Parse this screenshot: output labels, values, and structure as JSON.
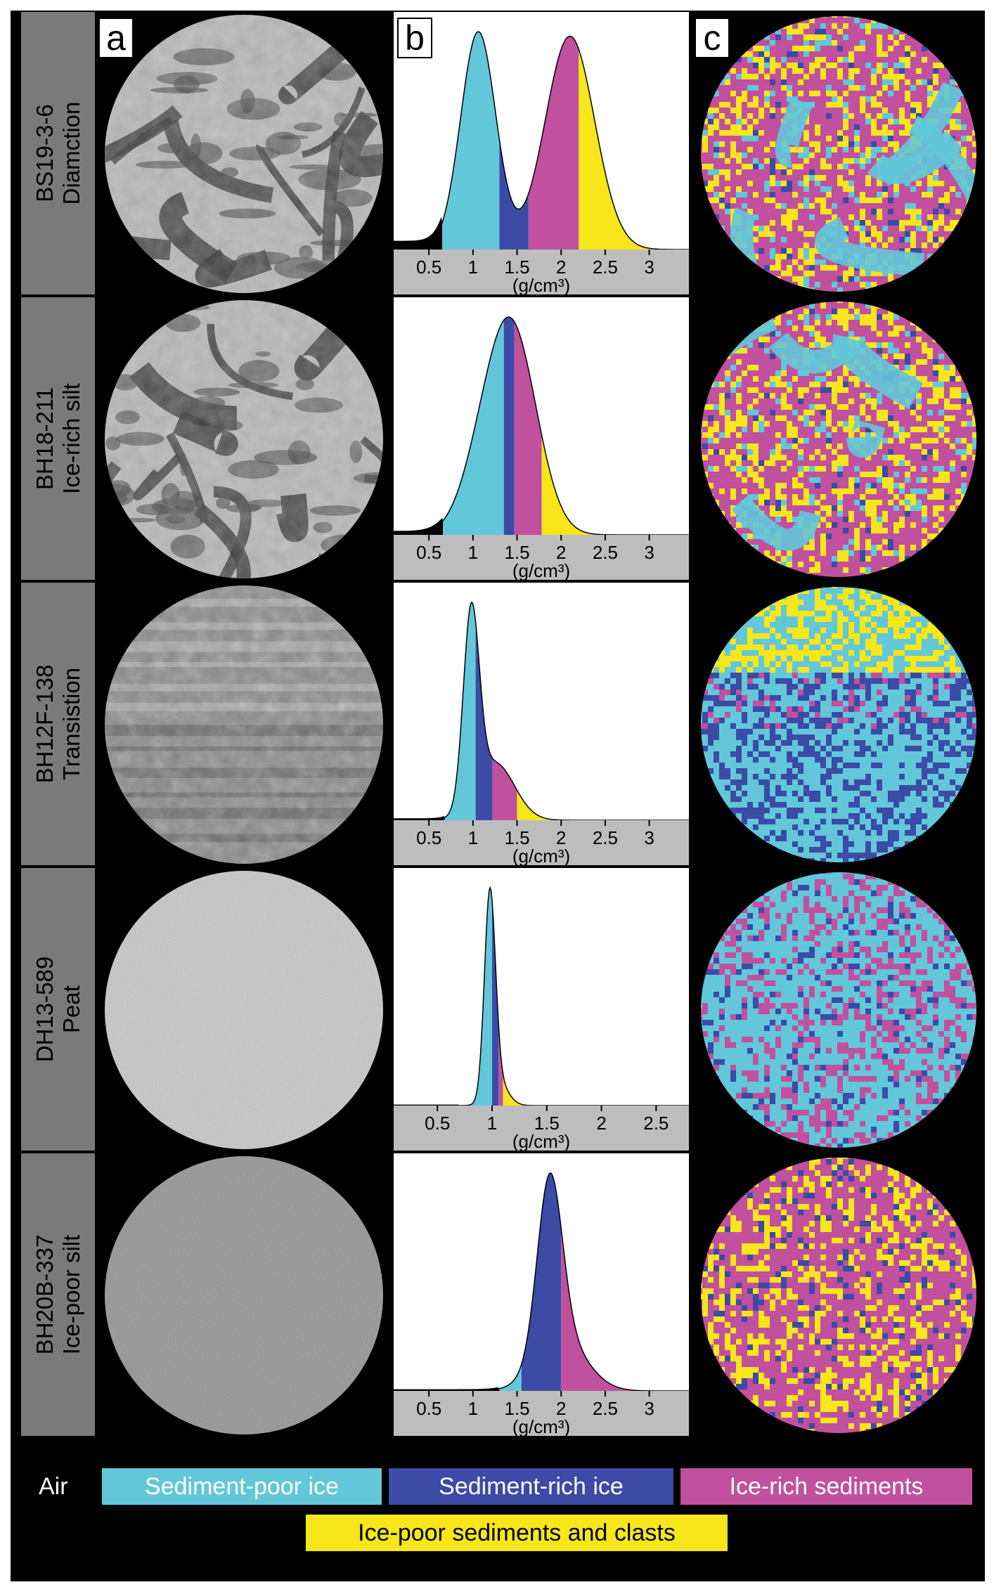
{
  "panel_labels": {
    "a": "a",
    "b": "b",
    "c": "c"
  },
  "colors": {
    "air": "#000000",
    "sediment_poor_ice": "#62c7d9",
    "sediment_rich_ice": "#3b4ba6",
    "ice_rich_sediments": "#c1509f",
    "ice_poor_sediments": "#f6e61a",
    "axis_band": "#bdbdbd",
    "label_band": "#7a7a7a"
  },
  "legend": {
    "air": "Air",
    "sediment_poor_ice": "Sediment-poor ice",
    "sediment_rich_ice": "Sediment-rich ice",
    "ice_rich_sediments": "Ice-rich sediments",
    "ice_poor_sediments": "Ice-poor sediments and clasts"
  },
  "unit": "(g/cm³)",
  "chart_data": [
    {
      "type": "area",
      "sample": "BS19-3-6",
      "facies": "Diamction",
      "xlim": [
        0.1,
        3.45
      ],
      "ticks": [
        "0.5",
        "1",
        "1.5",
        "2",
        "2.5",
        "3"
      ],
      "tick_values": [
        0.5,
        1,
        1.5,
        2,
        2.5,
        3
      ],
      "xlabel": "(g/cm³)",
      "components": [
        [
          1.06,
          0.2,
          1.0
        ],
        [
          2.1,
          0.28,
          0.98
        ]
      ],
      "baseline": 0.04,
      "thresholds": [
        0.65,
        1.3,
        1.63,
        2.2
      ],
      "texture": "diamict"
    },
    {
      "type": "area",
      "sample": "BH18-211",
      "facies": "Ice-rich silt",
      "xlim": [
        0.1,
        3.45
      ],
      "ticks": [
        "0.5",
        "1",
        "1.5",
        "2",
        "2.5",
        "3"
      ],
      "tick_values": [
        0.5,
        1,
        1.5,
        2,
        2.5,
        3
      ],
      "xlabel": "(g/cm³)",
      "components": [
        [
          1.45,
          0.28,
          1.0
        ],
        [
          1.1,
          0.25,
          0.25
        ]
      ],
      "baseline": 0.02,
      "thresholds": [
        0.66,
        1.35,
        1.47,
        1.78
      ],
      "texture": "diamict"
    },
    {
      "type": "area",
      "sample": "BH12F-138",
      "facies": "Transistion",
      "xlim": [
        0.1,
        3.45
      ],
      "ticks": [
        "0.5",
        "1",
        "1.5",
        "2",
        "2.5",
        "3"
      ],
      "tick_values": [
        0.5,
        1,
        1.5,
        2,
        2.5,
        3
      ],
      "xlabel": "(g/cm³)",
      "components": [
        [
          0.98,
          0.09,
          1.0
        ],
        [
          1.25,
          0.22,
          0.3
        ]
      ],
      "baseline": 0.01,
      "thresholds": [
        0.68,
        1.03,
        1.22,
        1.5
      ],
      "texture": "transition"
    },
    {
      "type": "area",
      "sample": "DH13-589",
      "facies": "Peat",
      "xlim": [
        0.1,
        2.8
      ],
      "ticks": [
        "0.5",
        "1",
        "1.5",
        "2",
        "2.5"
      ],
      "tick_values": [
        0.5,
        1,
        1.5,
        2,
        2.5
      ],
      "xlabel": "(g/cm³)",
      "components": [
        [
          0.98,
          0.05,
          1.0
        ],
        [
          1.05,
          0.09,
          0.12
        ]
      ],
      "baseline": 0.005,
      "thresholds": [
        0.7,
        1.0,
        1.06,
        1.1
      ],
      "texture": "peat"
    },
    {
      "type": "area",
      "sample": "BH20B-337",
      "facies": "Ice-poor silt",
      "xlim": [
        0.1,
        3.45
      ],
      "ticks": [
        "0.5",
        "1",
        "1.5",
        "2",
        "2.5",
        "3"
      ],
      "tick_values": [
        0.5,
        1,
        1.5,
        2,
        2.5,
        3
      ],
      "xlabel": "(g/cm³)",
      "components": [
        [
          1.87,
          0.14,
          1.0
        ],
        [
          2.0,
          0.28,
          0.3
        ]
      ],
      "baseline": 0.01,
      "thresholds": [
        1.3,
        1.55,
        2.0,
        2.85
      ],
      "texture": "silt"
    }
  ]
}
